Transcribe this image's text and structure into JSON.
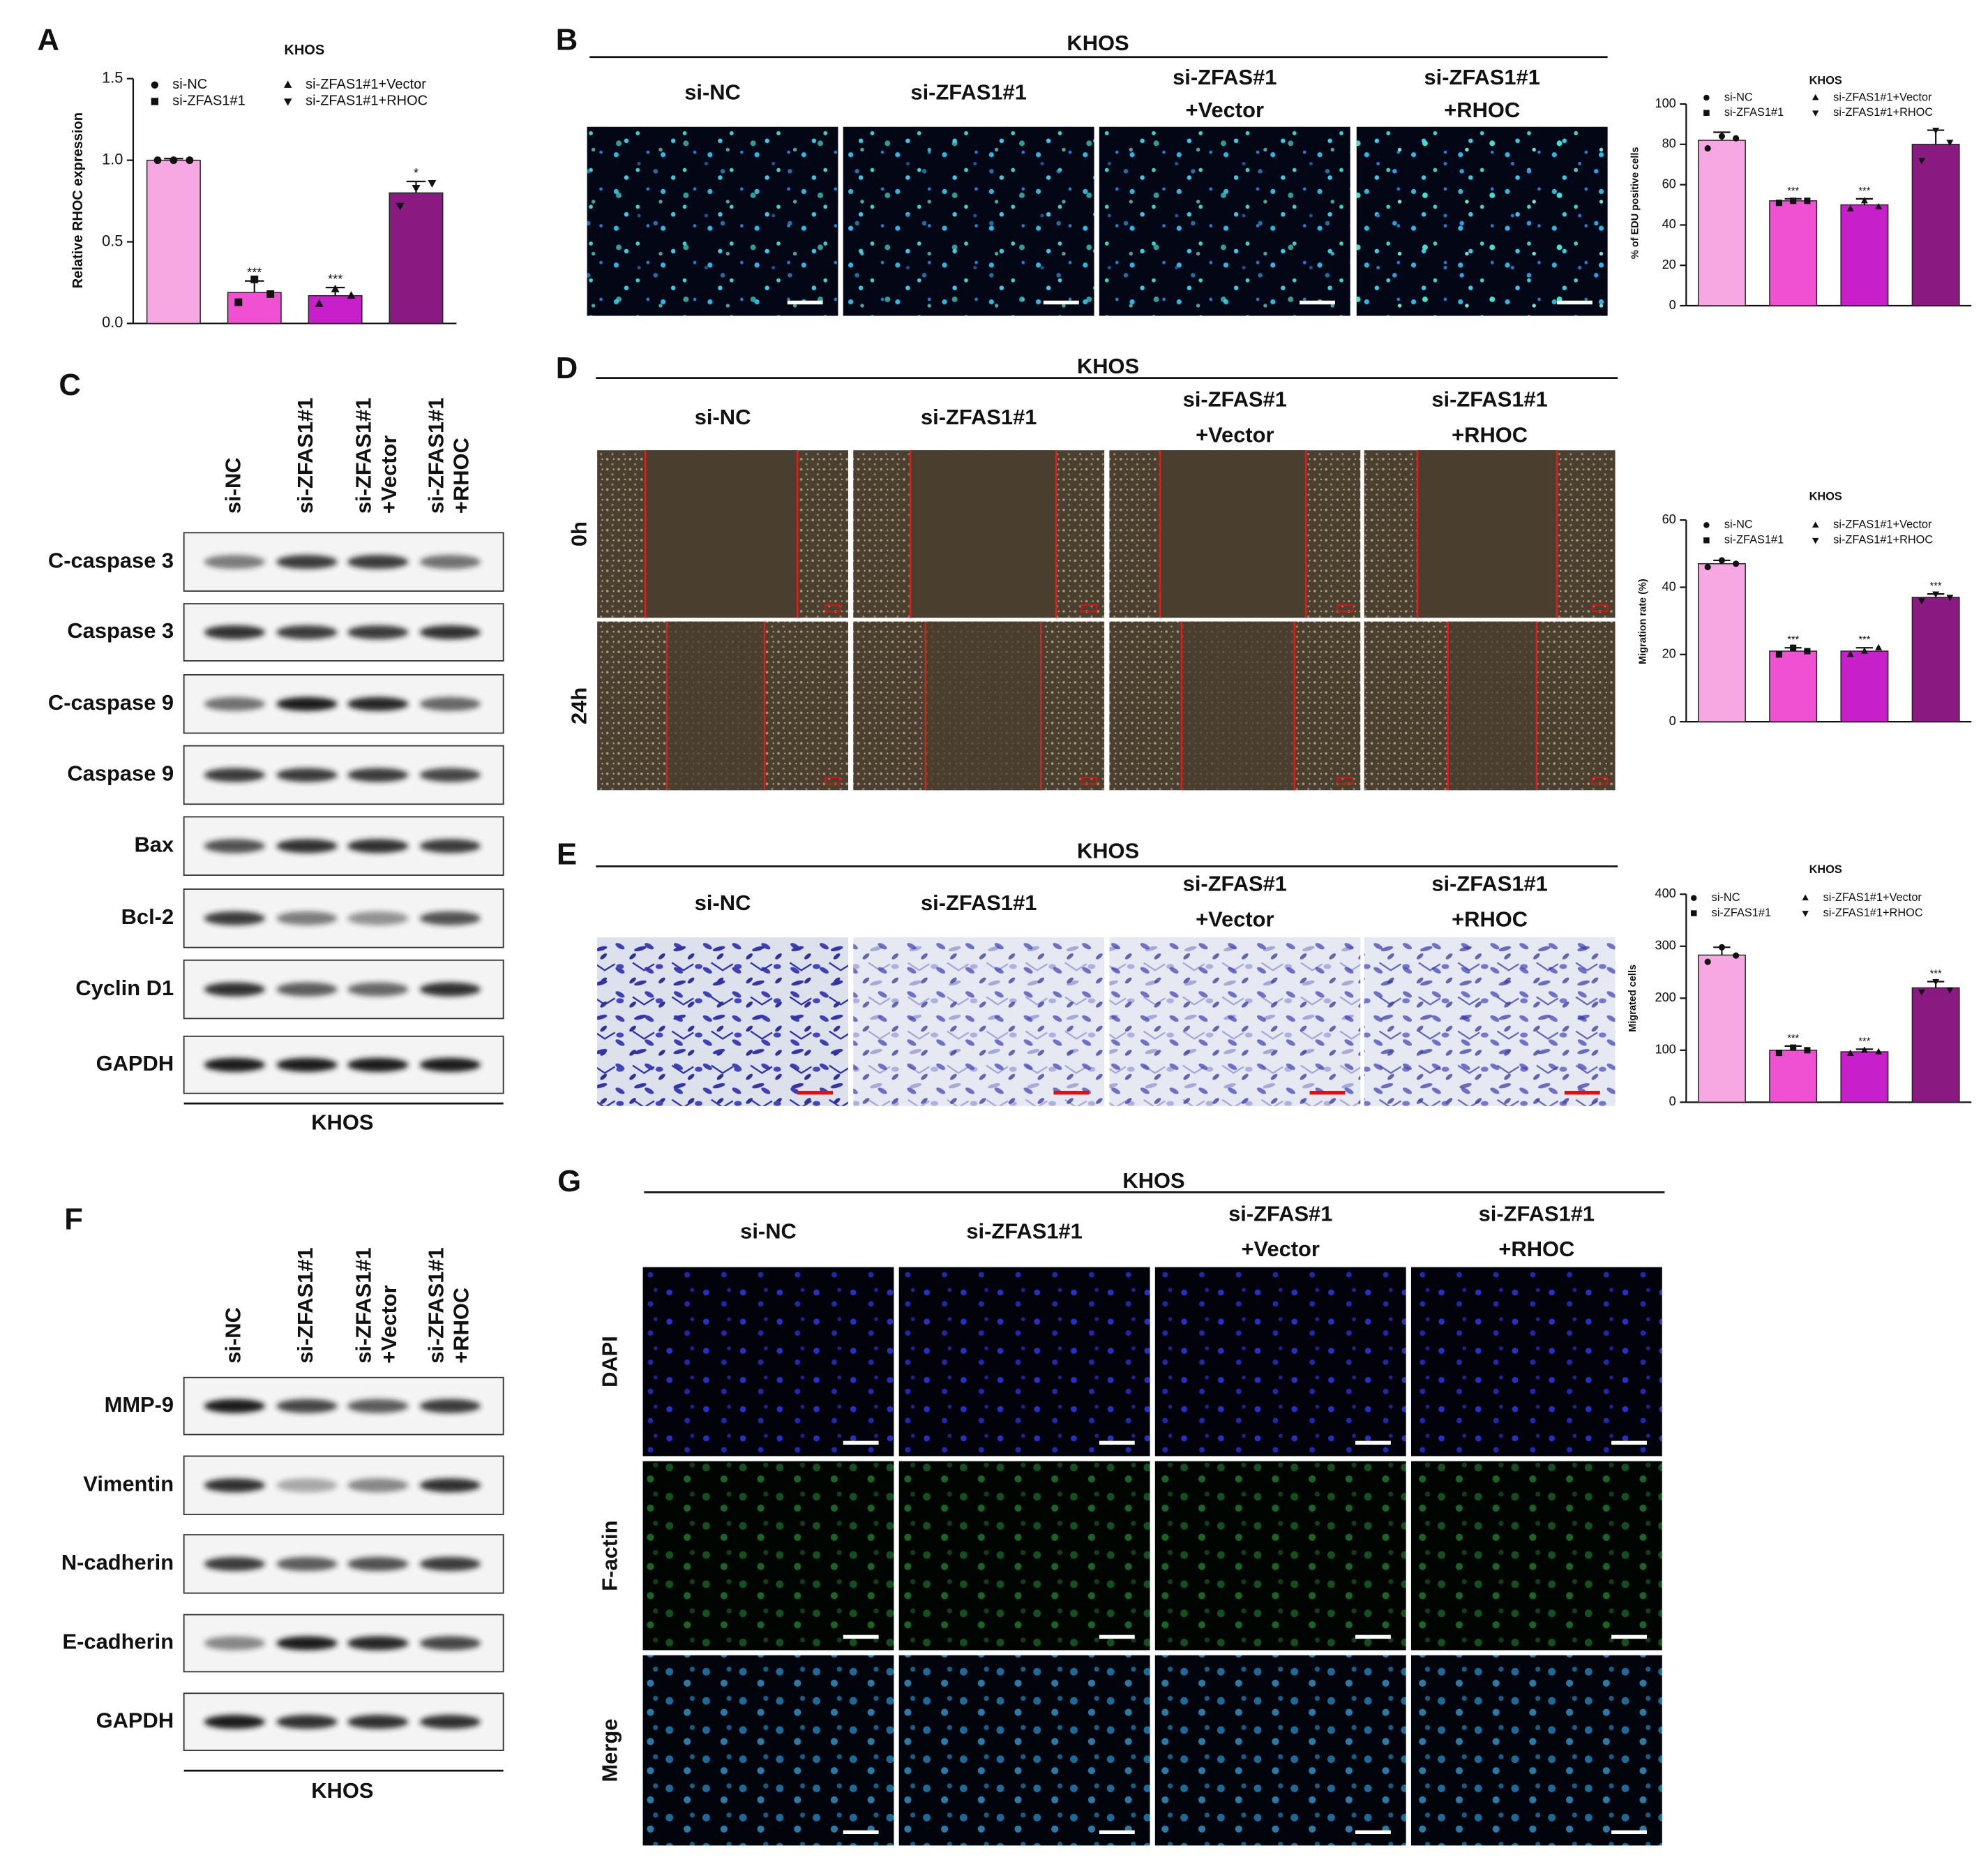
{
  "chart_data": [
    {
      "type": "bar",
      "panel": "A",
      "title": "KHOS",
      "ylabel": "Relative RHOC  expression",
      "ylim": [
        0,
        1.5
      ],
      "yticks": [
        {
          "value": 0,
          "label": "0.0"
        },
        {
          "value": 0.5,
          "label": "0.5"
        },
        {
          "value": 1,
          "label": "1.0"
        },
        {
          "value": 1.5,
          "label": "1.5"
        }
      ],
      "series": [
        {
          "name": "si-NC",
          "color": "#f7a8e3",
          "marker": "circle",
          "values": [
            1.0
          ],
          "errors": [
            0.01
          ],
          "points": [
            1.0,
            1.0,
            1.0
          ]
        },
        {
          "name": "si-ZFAS1#1",
          "color": "#f050d2",
          "marker": "square",
          "values": [
            0.19
          ],
          "errors": [
            0.07
          ],
          "points": [
            0.13,
            0.27,
            0.18
          ],
          "significance": [
            "***"
          ]
        },
        {
          "name": "si-ZFAS1#1+Vector",
          "color": "#c71fc9",
          "marker": "triangle",
          "values": [
            0.17
          ],
          "errors": [
            0.05
          ],
          "points": [
            0.12,
            0.21,
            0.17
          ],
          "significance": [
            "***"
          ]
        },
        {
          "name": "si-ZFAS1#1+RHOC",
          "color": "#8a1a82",
          "marker": "triangle-down",
          "values": [
            0.8
          ],
          "errors": [
            0.07
          ],
          "points": [
            0.72,
            0.83,
            0.86
          ],
          "significance": [
            "*"
          ]
        }
      ]
    },
    {
      "type": "bar",
      "title": "KHOS",
      "ylabel": "% of EDU positive cells",
      "ylim": [
        0,
        100
      ],
      "yticks": [
        0,
        20,
        40,
        60,
        80,
        100
      ],
      "series": [
        {
          "name": "si-NC",
          "color": "#f7a8e3",
          "marker": "circle",
          "values": [
            82
          ],
          "errors": [
            4
          ],
          "points": [
            78,
            84,
            83
          ]
        },
        {
          "name": "si-ZFAS1#1",
          "color": "#f050d2",
          "marker": "square",
          "values": [
            52
          ],
          "errors": [
            1
          ],
          "points": [
            51,
            52,
            52
          ],
          "significance": [
            "***"
          ]
        },
        {
          "name": "si-ZFAS1#1+Vector",
          "color": "#c71fc9",
          "marker": "triangle",
          "values": [
            50
          ],
          "errors": [
            3
          ],
          "points": [
            48,
            52,
            49
          ],
          "significance": [
            "***"
          ]
        },
        {
          "name": "si-ZFAS1#1+RHOC",
          "color": "#8a1a82",
          "marker": "triangle-down",
          "values": [
            80
          ],
          "errors": [
            7
          ],
          "points": [
            72,
            87,
            81
          ]
        }
      ]
    },
    {
      "type": "bar",
      "title": "KHOS",
      "ylabel": "Migration rate (%)",
      "ylim": [
        0,
        60
      ],
      "yticks": [
        0,
        20,
        40,
        60
      ],
      "series": [
        {
          "name": "si-NC",
          "color": "#f7a8e3",
          "marker": "circle",
          "values": [
            47
          ],
          "errors": [
            1
          ],
          "points": [
            46,
            48,
            47
          ]
        },
        {
          "name": "si-ZFAS1#1",
          "color": "#f050d2",
          "marker": "square",
          "values": [
            21
          ],
          "errors": [
            1
          ],
          "points": [
            20,
            22,
            21
          ],
          "significance": [
            "***"
          ]
        },
        {
          "name": "si-ZFAS1#1+Vector",
          "color": "#c71fc9",
          "marker": "triangle",
          "values": [
            21
          ],
          "errors": [
            1
          ],
          "points": [
            20,
            21,
            22
          ],
          "significance": [
            "***"
          ]
        },
        {
          "name": "si-ZFAS1#1+RHOC",
          "color": "#8a1a82",
          "marker": "triangle-down",
          "values": [
            37
          ],
          "errors": [
            1
          ],
          "points": [
            36,
            38,
            37
          ],
          "significance": [
            "***"
          ]
        }
      ]
    },
    {
      "type": "bar",
      "title": "KHOS",
      "ylabel": "Migrated cells",
      "ylim": [
        0,
        400
      ],
      "yticks": [
        0,
        100,
        200,
        300,
        400
      ],
      "series": [
        {
          "name": "si-NC",
          "color": "#f7a8e3",
          "marker": "circle",
          "values": [
            283
          ],
          "errors": [
            15
          ],
          "points": [
            270,
            298,
            282
          ]
        },
        {
          "name": "si-ZFAS1#1",
          "color": "#f050d2",
          "marker": "square",
          "values": [
            100
          ],
          "errors": [
            8
          ],
          "points": [
            95,
            105,
            100
          ],
          "significance": [
            "***"
          ]
        },
        {
          "name": "si-ZFAS1#1+Vector",
          "color": "#c71fc9",
          "marker": "triangle",
          "values": [
            97
          ],
          "errors": [
            5
          ],
          "points": [
            94,
            100,
            97
          ],
          "significance": [
            "***"
          ]
        },
        {
          "name": "si-ZFAS1#1+RHOC",
          "color": "#8a1a82",
          "marker": "triangle-down",
          "values": [
            220
          ],
          "errors": [
            12
          ],
          "points": [
            212,
            232,
            216
          ],
          "significance": [
            "***"
          ]
        }
      ]
    }
  ],
  "image_panels": {
    "B": {
      "label": "B",
      "title": "KHOS",
      "columns": [
        [
          "si-NC"
        ],
        [
          "si-ZFAS1#1"
        ],
        [
          "si-ZFAS#1",
          "+Vector"
        ],
        [
          "si-ZFAS1#1",
          "+RHOC"
        ]
      ]
    },
    "D": {
      "label": "D",
      "title": "KHOS",
      "columns": [
        [
          "si-NC"
        ],
        [
          "si-ZFAS1#1"
        ],
        [
          "si-ZFAS#1",
          "+Vector"
        ],
        [
          "si-ZFAS1#1",
          "+RHOC"
        ]
      ],
      "rows": [
        "0h",
        "24h"
      ]
    },
    "E": {
      "label": "E",
      "title": "KHOS",
      "columns": [
        [
          "si-NC"
        ],
        [
          "si-ZFAS1#1"
        ],
        [
          "si-ZFAS#1",
          "+Vector"
        ],
        [
          "si-ZFAS1#1",
          "+RHOC"
        ]
      ]
    },
    "G": {
      "label": "G",
      "title": "KHOS",
      "columns": [
        [
          "si-NC"
        ],
        [
          "si-ZFAS1#1"
        ],
        [
          "si-ZFAS#1",
          "+Vector"
        ],
        [
          "si-ZFAS1#1",
          "+RHOC"
        ]
      ],
      "rows": [
        "DAPI",
        "F-actin",
        "Merge"
      ]
    }
  },
  "blots": {
    "C": {
      "label": "C",
      "lanes": [
        [
          "si-NC"
        ],
        [
          "si-ZFAS1#1"
        ],
        [
          "si-ZFAS1#1",
          "+Vector"
        ],
        [
          "si-ZFAS1#1",
          "+RHOC"
        ]
      ],
      "proteins": [
        "C-caspase 3",
        "Caspase 3",
        "C-caspase 9",
        "Caspase 9",
        "Bax",
        "Bcl-2",
        "Cyclin D1",
        "GAPDH"
      ],
      "cell_line": "KHOS"
    },
    "F": {
      "label": "F",
      "lanes": [
        [
          "si-NC"
        ],
        [
          "si-ZFAS1#1"
        ],
        [
          "si-ZFAS1#1",
          "+Vector"
        ],
        [
          "si-ZFAS1#1",
          "+RHOC"
        ]
      ],
      "proteins": [
        "MMP-9",
        "Vimentin",
        "N-cadherin",
        "E-cadherin",
        "GAPDH"
      ],
      "cell_line": "KHOS"
    }
  }
}
